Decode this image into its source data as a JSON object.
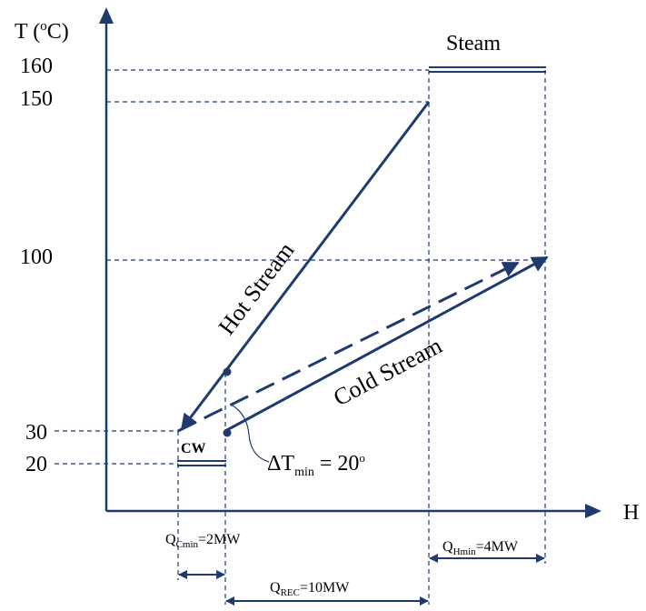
{
  "colors": {
    "line": "#1f3a6e",
    "text": "#000000",
    "background": "#ffffff"
  },
  "axes": {
    "y_label_prefix": "T (",
    "y_label_sup": "o",
    "y_label_suffix": "C)",
    "x_label": "H"
  },
  "ticks": {
    "t160": "160",
    "t150": "150",
    "t100": "100",
    "t30": "30",
    "t20": "20"
  },
  "utilities": {
    "steam": "Steam",
    "cw": "CW"
  },
  "streams": {
    "hot": "Hot Stream",
    "cold": "Cold Stream"
  },
  "annotations": {
    "dtmin_delta": "ΔT",
    "dtmin_sub": "min",
    "dtmin_value": " = 20",
    "dtmin_sup": "o",
    "qc_prefix": "Q",
    "qc_sub": "Cmin",
    "qc_value": "=2MW",
    "qh_prefix": "Q",
    "qh_sub": "Hmin",
    "qh_value": "=4MW",
    "qrec_prefix": "Q",
    "qrec_sub": "REC",
    "qrec_value": "=10MW"
  }
}
